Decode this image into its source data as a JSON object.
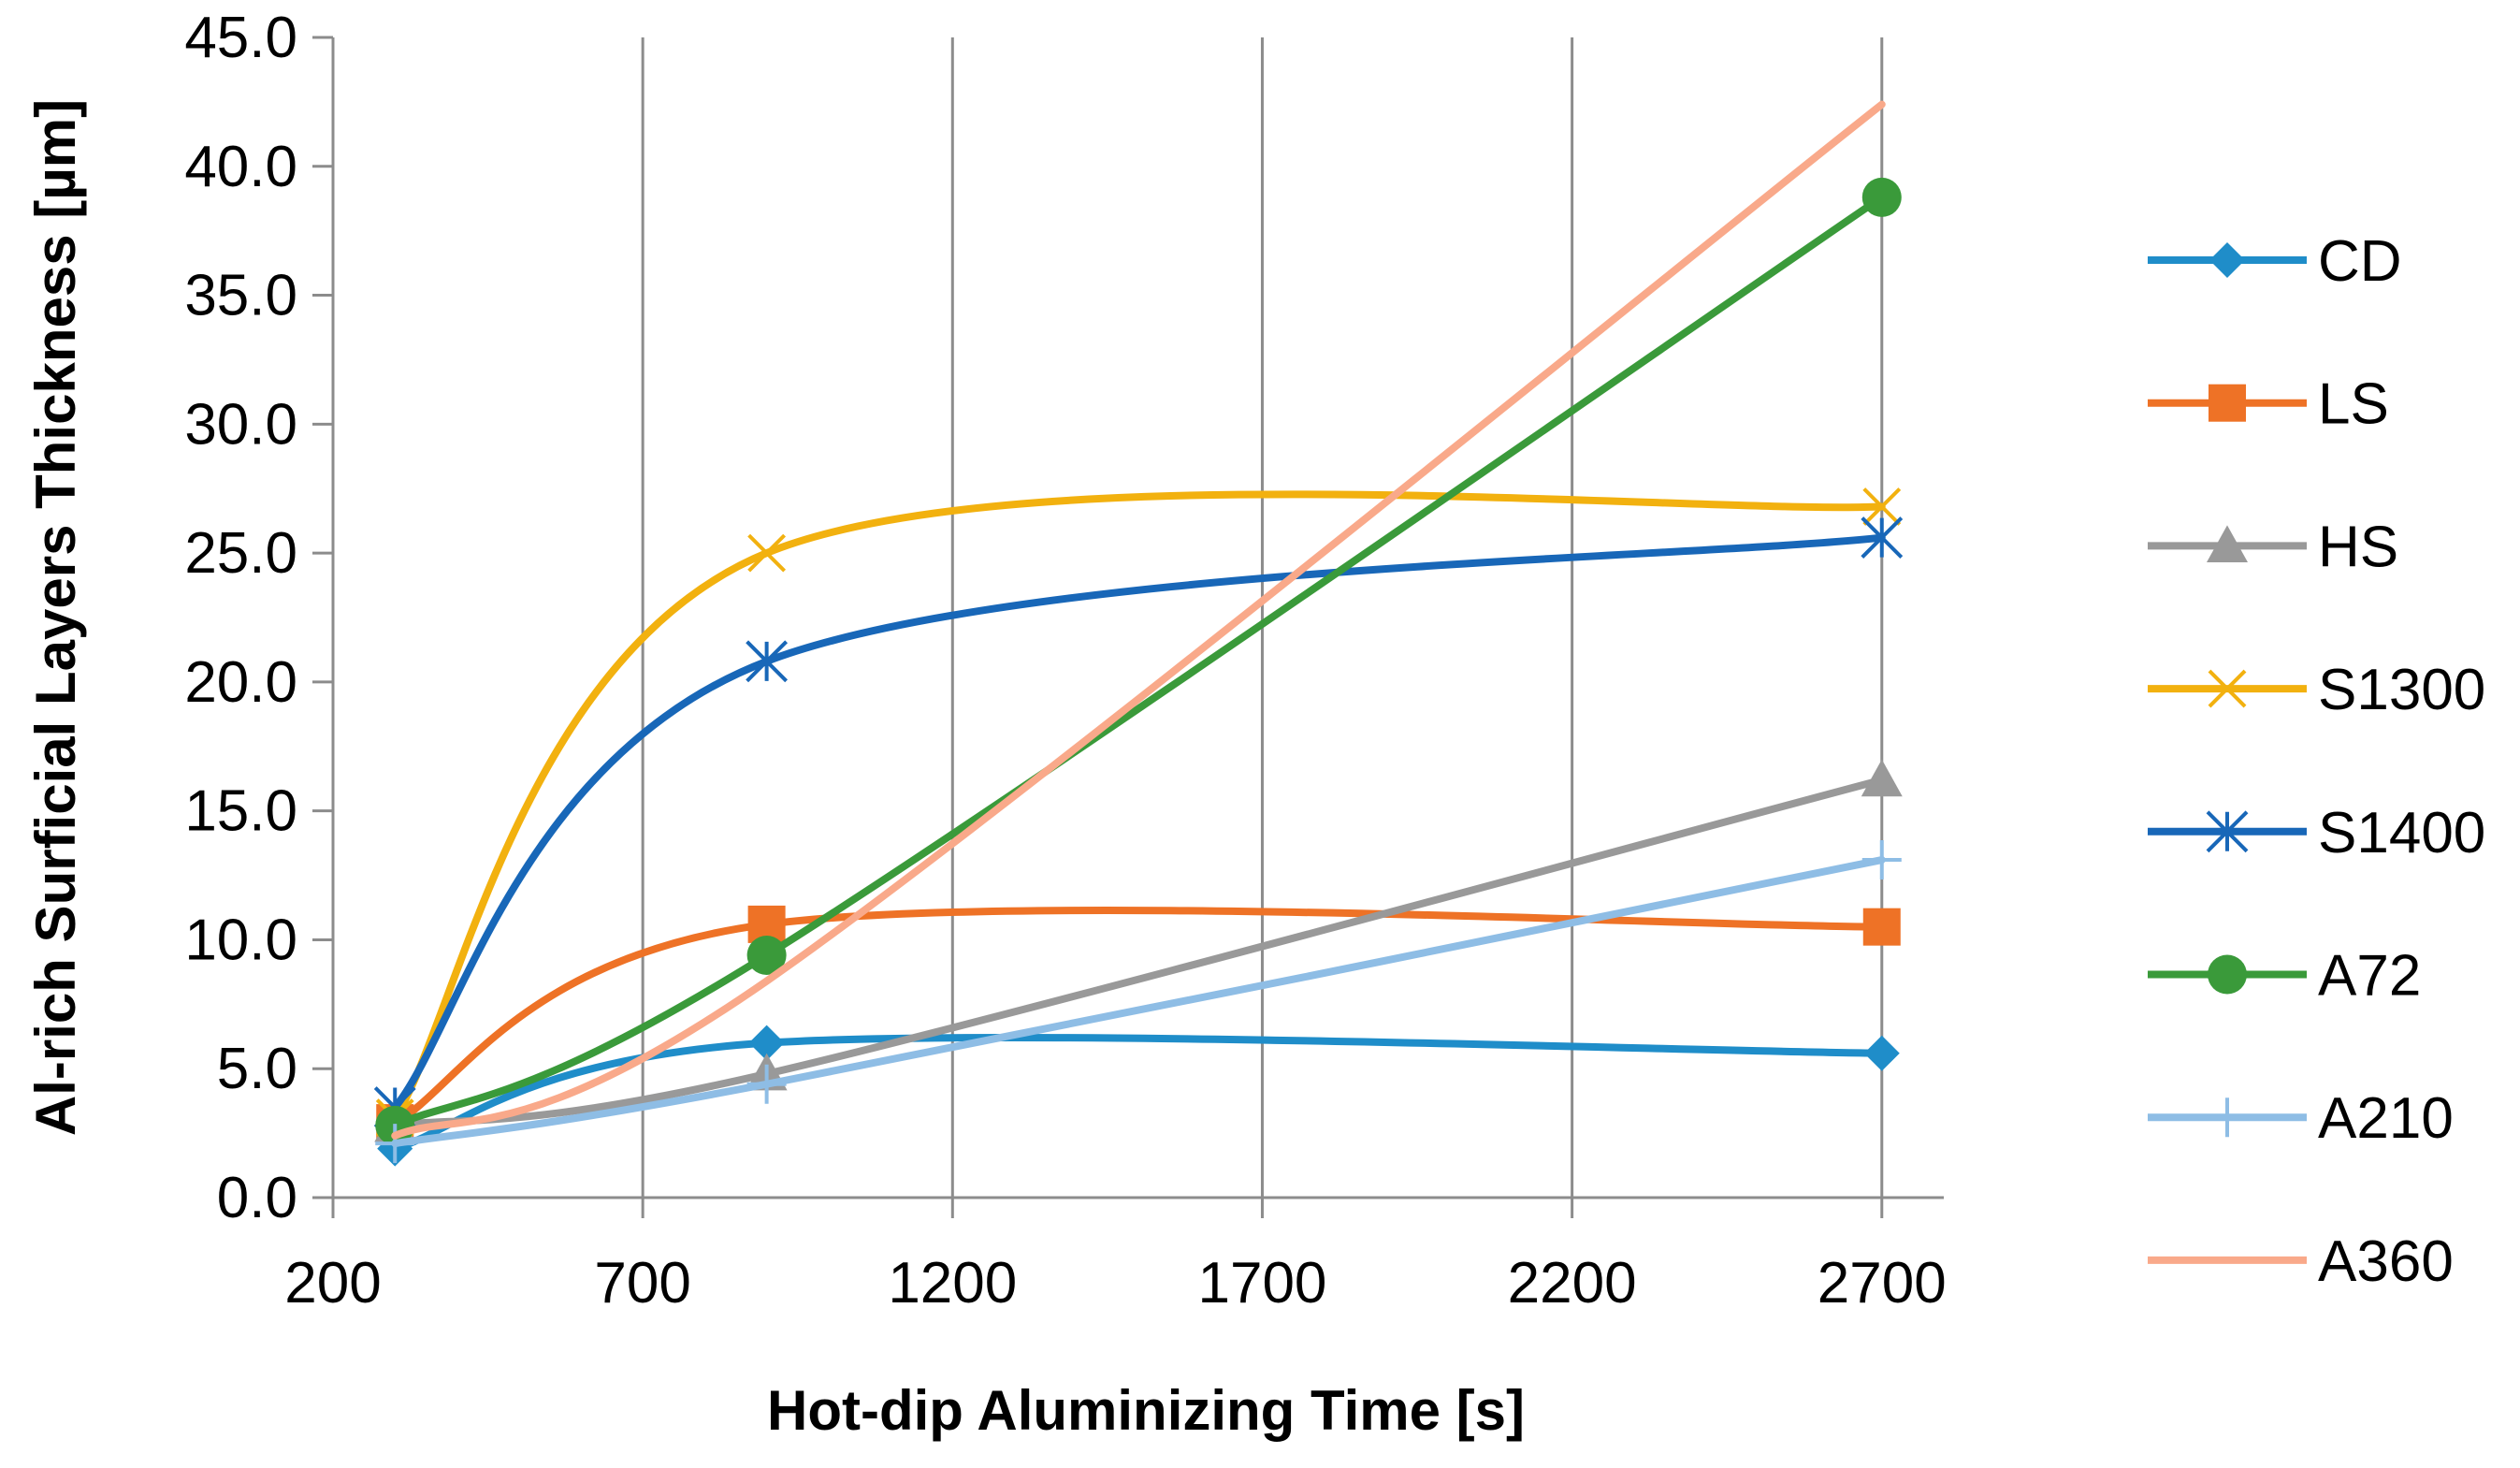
{
  "chart_data": {
    "type": "line",
    "title": "",
    "xlabel": "Hot-dip Aluminizing Time [s]",
    "ylabel": "Al-rich Surficial Layers Thickness [µm]",
    "xlim": [
      200,
      2800
    ],
    "ylim": [
      0,
      45
    ],
    "x_ticks": [
      200,
      700,
      1200,
      1700,
      2200,
      2700
    ],
    "x_tick_labels": [
      "200",
      "700",
      "1200",
      "1700",
      "2200",
      "2700"
    ],
    "y_ticks": [
      0,
      5,
      10,
      15,
      20,
      25,
      30,
      35,
      40,
      45
    ],
    "y_tick_labels": [
      "0.0",
      "5.0",
      "10.0",
      "15.0",
      "20.0",
      "25.0",
      "30.0",
      "35.0",
      "40.0",
      "45.0"
    ],
    "grid": "vertical",
    "legend_position": "right",
    "x": [
      300,
      900,
      2700
    ],
    "series": [
      {
        "name": "CD",
        "values": [
          1.9,
          6.0,
          5.6
        ],
        "color": "#1F8DC9",
        "marker": "diamond"
      },
      {
        "name": "LS",
        "values": [
          2.9,
          10.6,
          10.5
        ],
        "color": "#EE7226",
        "marker": "square"
      },
      {
        "name": "HS",
        "values": [
          2.8,
          4.8,
          16.2
        ],
        "color": "#999999",
        "marker": "triangle"
      },
      {
        "name": "S1300",
        "values": [
          3.1,
          25.0,
          26.8
        ],
        "color": "#F2B10F",
        "marker": "x"
      },
      {
        "name": "S1400",
        "values": [
          3.5,
          20.8,
          25.6
        ],
        "color": "#1867B8",
        "marker": "star"
      },
      {
        "name": "A72",
        "values": [
          2.8,
          9.4,
          38.8
        ],
        "color": "#3A9A3A",
        "marker": "circle"
      },
      {
        "name": "A210",
        "values": [
          2.1,
          4.4,
          13.1
        ],
        "color": "#8EBDE5",
        "marker": "plus"
      },
      {
        "name": "A360",
        "values": [
          2.4,
          8.4,
          42.4
        ],
        "color": "#F9A98A",
        "marker": "none"
      }
    ]
  }
}
